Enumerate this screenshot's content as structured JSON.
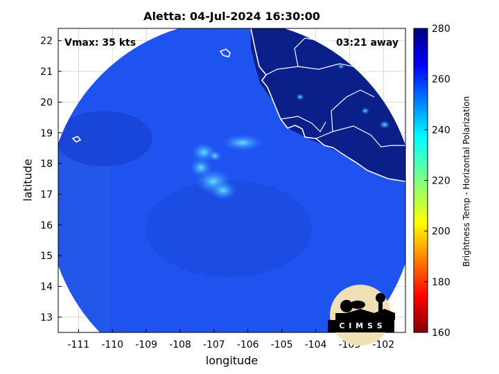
{
  "title": "Aletta: 04-Jul-2024 16:30:00",
  "vmax_label": "Vmax: 35 kts",
  "time_away_label": "03:21 away",
  "axes": {
    "xlabel": "longitude",
    "ylabel": "latitude",
    "x_ticks": [
      "-111",
      "-110",
      "-109",
      "-108",
      "-107",
      "-106",
      "-105",
      "-104",
      "-103",
      "-102"
    ],
    "x_tick_values": [
      -111,
      -110,
      -109,
      -108,
      -107,
      -106,
      -105,
      -104,
      -103,
      -102
    ],
    "y_ticks": [
      "22",
      "21",
      "20",
      "19",
      "18",
      "17",
      "16",
      "15",
      "14",
      "13"
    ],
    "y_tick_values": [
      22,
      21,
      20,
      19,
      18,
      17,
      16,
      15,
      14,
      13
    ],
    "xlim": [
      -111.6,
      -101.35
    ],
    "ylim": [
      12.5,
      22.4
    ],
    "grid": true
  },
  "colorbar": {
    "label": "Brightness Temp - Horizontal Polarization",
    "ticks": [
      "280",
      "260",
      "240",
      "220",
      "200",
      "180",
      "160"
    ],
    "tick_values": [
      280,
      260,
      240,
      220,
      200,
      180,
      160
    ],
    "range": [
      160,
      280
    ],
    "colormap": "jet"
  },
  "logo_text": "C I M S S",
  "colors": {
    "ocean": "#1f53f0",
    "land": "#0a1f8a",
    "coast": "#ffffff"
  }
}
